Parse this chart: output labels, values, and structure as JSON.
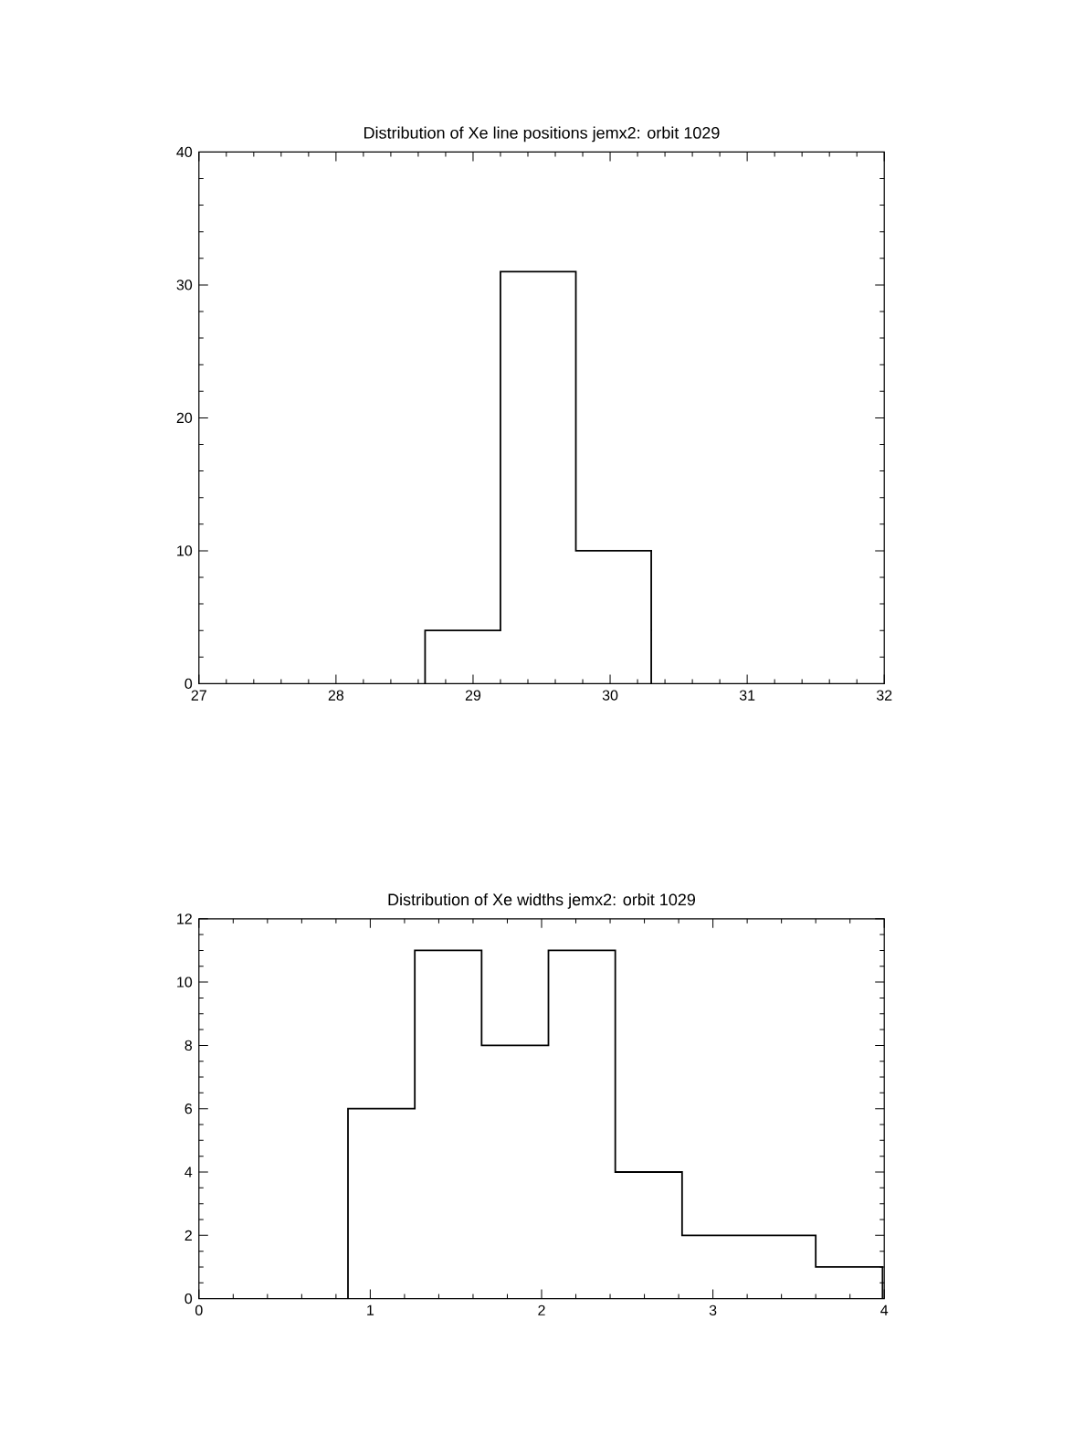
{
  "chart_data": [
    {
      "type": "histogram",
      "title": "Distribution of Xe line positions jemx2: orbit 1029",
      "bins": [
        28.65,
        29.2,
        29.75,
        30.3
      ],
      "values": [
        4,
        31,
        10
      ],
      "color": "#000000",
      "xlim": [
        27,
        32
      ],
      "xticks": [
        27,
        28,
        29,
        30,
        31,
        32
      ],
      "ylim": [
        0,
        40
      ],
      "yticks": [
        0,
        10,
        20,
        30,
        40
      ]
    },
    {
      "type": "histogram",
      "title": "Distribution of Xe widths jemx2: orbit 1029",
      "bins": [
        0.87,
        1.26,
        1.65,
        2.04,
        2.43,
        2.82,
        3.21,
        3.6,
        3.99
      ],
      "values": [
        6,
        11,
        8,
        11,
        4,
        2,
        2,
        1
      ],
      "color": "#000000",
      "xlim": [
        0,
        4
      ],
      "xticks": [
        0,
        1,
        2,
        3,
        4
      ],
      "ylim": [
        0,
        12
      ],
      "yticks": [
        0,
        2,
        4,
        6,
        8,
        10,
        12
      ]
    }
  ]
}
